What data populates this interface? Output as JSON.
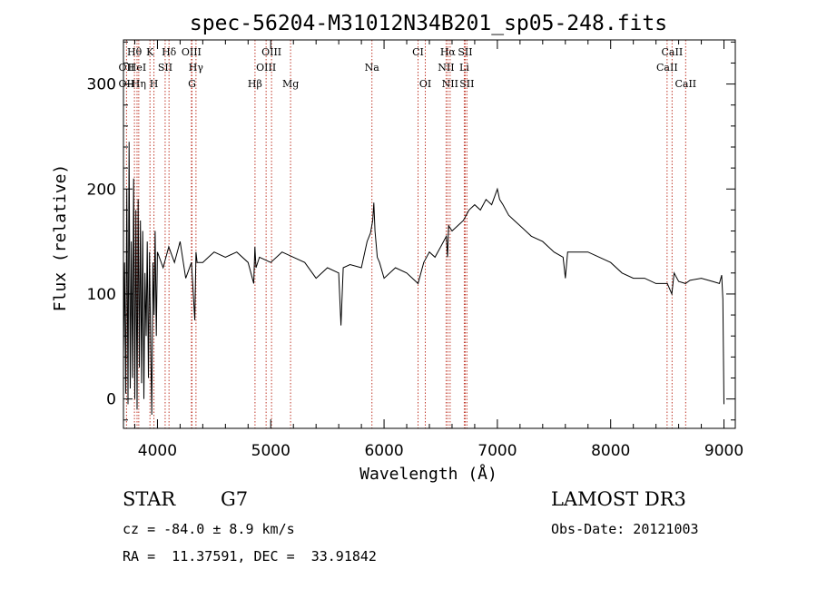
{
  "chart_data": {
    "type": "line",
    "title": "spec-56204-M31012N34B201_sp05-248.fits",
    "xlabel": "Wavelength (Å)",
    "ylabel": "Flux (relative)",
    "xlim": [
      3700,
      9100
    ],
    "ylim": [
      -28,
      342
    ],
    "xticks": [
      4000,
      5000,
      6000,
      7000,
      8000,
      9000
    ],
    "xtick_labels": [
      "4000",
      "5000",
      "6000",
      "7000",
      "8000",
      "9000"
    ],
    "yticks": [
      0,
      100,
      200,
      300
    ],
    "ytick_labels": [
      "0",
      "100",
      "200",
      "300"
    ],
    "series": [
      {
        "name": "spectrum",
        "x": [
          3700,
          3710,
          3720,
          3730,
          3740,
          3750,
          3760,
          3770,
          3780,
          3790,
          3800,
          3810,
          3820,
          3830,
          3840,
          3850,
          3860,
          3870,
          3880,
          3890,
          3900,
          3910,
          3920,
          3930,
          3940,
          3950,
          3960,
          3970,
          3980,
          3990,
          4000,
          4050,
          4100,
          4150,
          4200,
          4250,
          4300,
          4330,
          4340,
          4350,
          4400,
          4450,
          4500,
          4600,
          4700,
          4800,
          4850,
          4860,
          4870,
          4900,
          5000,
          5100,
          5200,
          5300,
          5400,
          5500,
          5600,
          5620,
          5640,
          5700,
          5800,
          5850,
          5880,
          5900,
          5910,
          5920,
          5940,
          5960,
          6000,
          6100,
          6200,
          6300,
          6350,
          6400,
          6450,
          6500,
          6550,
          6560,
          6570,
          6600,
          6650,
          6700,
          6750,
          6800,
          6850,
          6900,
          6950,
          7000,
          7020,
          7050,
          7100,
          7150,
          7200,
          7300,
          7400,
          7500,
          7580,
          7600,
          7620,
          7700,
          7800,
          7900,
          8000,
          8100,
          8200,
          8300,
          8400,
          8500,
          8540,
          8560,
          8600,
          8660,
          8700,
          8800,
          8900,
          8960,
          8980,
          8990,
          9000
        ],
        "y": [
          40,
          130,
          5,
          200,
          -5,
          245,
          10,
          150,
          20,
          210,
          0,
          180,
          -10,
          190,
          30,
          170,
          15,
          160,
          0,
          120,
          60,
          150,
          20,
          140,
          50,
          -15,
          130,
          80,
          160,
          60,
          140,
          125,
          145,
          130,
          150,
          115,
          130,
          75,
          140,
          130,
          130,
          135,
          140,
          135,
          140,
          130,
          110,
          145,
          125,
          135,
          130,
          140,
          135,
          130,
          115,
          125,
          120,
          70,
          125,
          128,
          125,
          150,
          158,
          170,
          187,
          160,
          135,
          130,
          115,
          125,
          120,
          110,
          130,
          140,
          135,
          145,
          155,
          135,
          165,
          160,
          165,
          170,
          180,
          185,
          180,
          190,
          185,
          200,
          190,
          185,
          175,
          170,
          165,
          155,
          150,
          140,
          135,
          115,
          140,
          140,
          140,
          135,
          130,
          120,
          115,
          115,
          110,
          110,
          100,
          120,
          112,
          110,
          113,
          115,
          112,
          110,
          118,
          95,
          -5
        ]
      }
    ],
    "spectral_lines": [
      {
        "name": "Hθ",
        "x": 3797,
        "row": 1
      },
      {
        "name": "K",
        "x": 3934,
        "row": 1
      },
      {
        "name": "Hδ",
        "x": 4102,
        "row": 1
      },
      {
        "name": "OIII",
        "x": 4300,
        "row": 1
      },
      {
        "name": "OIII",
        "x": 5007,
        "row": 1
      },
      {
        "name": "CI",
        "x": 6300,
        "row": 1
      },
      {
        "name": "Hα",
        "x": 6563,
        "row": 1
      },
      {
        "name": "SII",
        "x": 6716,
        "row": 1
      },
      {
        "name": "CaII",
        "x": 8542,
        "row": 1
      },
      {
        "name": "OII",
        "x": 3727,
        "row": 2
      },
      {
        "name": "HeI",
        "x": 3820,
        "row": 2
      },
      {
        "name": "SII",
        "x": 4068,
        "row": 2
      },
      {
        "name": "Hγ",
        "x": 4340,
        "row": 2
      },
      {
        "name": "OIII",
        "x": 4959,
        "row": 2
      },
      {
        "name": "Na",
        "x": 5893,
        "row": 2
      },
      {
        "name": "NII",
        "x": 6548,
        "row": 2
      },
      {
        "name": "Li",
        "x": 6708,
        "row": 2
      },
      {
        "name": "CaII",
        "x": 8498,
        "row": 2
      },
      {
        "name": "OII",
        "x": 3727,
        "row": 3
      },
      {
        "name": "Hη",
        "x": 3835,
        "row": 3
      },
      {
        "name": "H",
        "x": 3969,
        "row": 3
      },
      {
        "name": "G",
        "x": 4305,
        "row": 3
      },
      {
        "name": "Hβ",
        "x": 4861,
        "row": 3
      },
      {
        "name": "Mg",
        "x": 5175,
        "row": 3
      },
      {
        "name": "OI",
        "x": 6364,
        "row": 3
      },
      {
        "name": "NII",
        "x": 6583,
        "row": 3
      },
      {
        "name": "SII",
        "x": 6731,
        "row": 3
      },
      {
        "name": "CaII",
        "x": 8662,
        "row": 3
      }
    ],
    "line_color": "#c0392b"
  },
  "info": {
    "class_label": "STAR",
    "subclass": "G7",
    "survey": "LAMOST DR3",
    "redshift_line": "cz = -84.0 ± 8.9 km/s",
    "obs_date_line": "Obs-Date: 20121003",
    "coords_line": "RA =  11.37591, DEC =  33.91842"
  }
}
